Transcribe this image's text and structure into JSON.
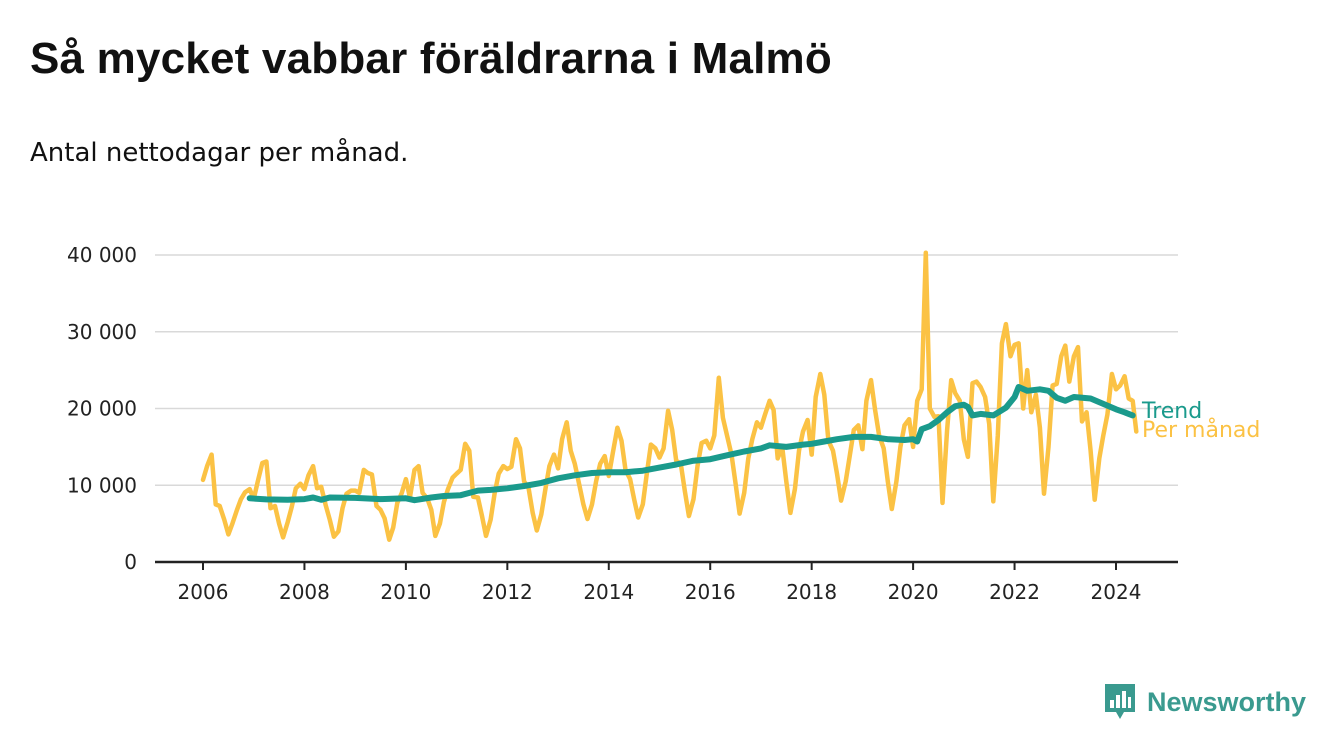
{
  "header": {
    "title": "Så mycket vabbar föräldrarna i Malmö",
    "subtitle": "Antal nettodagar per månad."
  },
  "brand": {
    "name": "Newsworthy",
    "icon": "newsworthy-logo-icon",
    "color": "#3a9a8f"
  },
  "chart_data": {
    "type": "line",
    "title": "Så mycket vabbar föräldrarna i Malmö",
    "subtitle": "Antal nettodagar per månad.",
    "xlabel": "",
    "ylabel": "",
    "xlim": [
      2006,
      2024.4
    ],
    "ylim": [
      0,
      40000
    ],
    "x_ticks": [
      2006,
      2008,
      2010,
      2012,
      2014,
      2016,
      2018,
      2020,
      2022,
      2024
    ],
    "x_tick_labels": [
      "2006",
      "2008",
      "2010",
      "2012",
      "2014",
      "2016",
      "2018",
      "2020",
      "2022",
      "2024"
    ],
    "y_ticks": [
      0,
      10000,
      20000,
      30000,
      40000
    ],
    "y_tick_labels": [
      "0",
      "10 000",
      "20 000",
      "30 000",
      "40 000"
    ],
    "grid": "horizontal",
    "legend": "inline-right",
    "series": [
      {
        "name": "Per månad",
        "color": "#fbc244",
        "points": [
          [
            2006.0,
            10700
          ],
          [
            2006.08,
            12500
          ],
          [
            2006.17,
            14000
          ],
          [
            2006.25,
            7500
          ],
          [
            2006.33,
            7300
          ],
          [
            2006.42,
            5500
          ],
          [
            2006.5,
            3600
          ],
          [
            2006.58,
            5000
          ],
          [
            2006.67,
            6800
          ],
          [
            2006.75,
            8200
          ],
          [
            2006.83,
            9100
          ],
          [
            2006.92,
            9500
          ],
          [
            2007.0,
            8200
          ],
          [
            2007.08,
            10500
          ],
          [
            2007.17,
            12900
          ],
          [
            2007.25,
            13100
          ],
          [
            2007.33,
            7000
          ],
          [
            2007.42,
            7300
          ],
          [
            2007.5,
            5000
          ],
          [
            2007.58,
            3200
          ],
          [
            2007.67,
            5200
          ],
          [
            2007.75,
            7200
          ],
          [
            2007.83,
            9600
          ],
          [
            2007.92,
            10200
          ],
          [
            2008.0,
            9500
          ],
          [
            2008.08,
            11300
          ],
          [
            2008.17,
            12500
          ],
          [
            2008.25,
            9600
          ],
          [
            2008.33,
            9800
          ],
          [
            2008.42,
            7400
          ],
          [
            2008.5,
            5500
          ],
          [
            2008.58,
            3300
          ],
          [
            2008.67,
            4000
          ],
          [
            2008.75,
            7000
          ],
          [
            2008.83,
            8900
          ],
          [
            2008.92,
            9300
          ],
          [
            2009.0,
            9300
          ],
          [
            2009.08,
            9000
          ],
          [
            2009.17,
            12000
          ],
          [
            2009.25,
            11600
          ],
          [
            2009.33,
            11400
          ],
          [
            2009.42,
            7300
          ],
          [
            2009.5,
            6800
          ],
          [
            2009.58,
            5700
          ],
          [
            2009.67,
            2900
          ],
          [
            2009.75,
            4500
          ],
          [
            2009.83,
            7700
          ],
          [
            2009.92,
            9000
          ],
          [
            2010.0,
            10800
          ],
          [
            2010.08,
            8400
          ],
          [
            2010.17,
            12000
          ],
          [
            2010.25,
            12500
          ],
          [
            2010.33,
            9000
          ],
          [
            2010.42,
            8300
          ],
          [
            2010.5,
            6800
          ],
          [
            2010.58,
            3400
          ],
          [
            2010.67,
            5000
          ],
          [
            2010.75,
            7800
          ],
          [
            2010.83,
            9500
          ],
          [
            2010.92,
            11000
          ],
          [
            2011.0,
            11500
          ],
          [
            2011.08,
            12000
          ],
          [
            2011.17,
            15400
          ],
          [
            2011.25,
            14500
          ],
          [
            2011.33,
            8500
          ],
          [
            2011.42,
            8400
          ],
          [
            2011.5,
            6000
          ],
          [
            2011.58,
            3400
          ],
          [
            2011.67,
            5500
          ],
          [
            2011.75,
            9000
          ],
          [
            2011.83,
            11500
          ],
          [
            2011.92,
            12500
          ],
          [
            2012.0,
            12100
          ],
          [
            2012.08,
            12400
          ],
          [
            2012.17,
            16000
          ],
          [
            2012.25,
            14800
          ],
          [
            2012.33,
            10500
          ],
          [
            2012.42,
            9600
          ],
          [
            2012.5,
            6400
          ],
          [
            2012.58,
            4100
          ],
          [
            2012.67,
            6200
          ],
          [
            2012.75,
            9500
          ],
          [
            2012.83,
            12500
          ],
          [
            2012.92,
            14000
          ],
          [
            2013.0,
            12200
          ],
          [
            2013.08,
            16000
          ],
          [
            2013.17,
            18200
          ],
          [
            2013.25,
            14500
          ],
          [
            2013.33,
            12800
          ],
          [
            2013.42,
            10000
          ],
          [
            2013.5,
            7500
          ],
          [
            2013.58,
            5600
          ],
          [
            2013.67,
            7500
          ],
          [
            2013.75,
            10500
          ],
          [
            2013.83,
            12800
          ],
          [
            2013.92,
            13800
          ],
          [
            2014.0,
            11200
          ],
          [
            2014.08,
            14200
          ],
          [
            2014.17,
            17500
          ],
          [
            2014.25,
            15800
          ],
          [
            2014.33,
            12000
          ],
          [
            2014.42,
            10800
          ],
          [
            2014.5,
            8200
          ],
          [
            2014.58,
            5800
          ],
          [
            2014.67,
            7500
          ],
          [
            2014.75,
            11500
          ],
          [
            2014.83,
            15300
          ],
          [
            2014.92,
            14800
          ],
          [
            2015.0,
            13600
          ],
          [
            2015.08,
            14800
          ],
          [
            2015.17,
            19700
          ],
          [
            2015.25,
            17200
          ],
          [
            2015.33,
            13200
          ],
          [
            2015.42,
            12800
          ],
          [
            2015.5,
            9200
          ],
          [
            2015.58,
            6000
          ],
          [
            2015.67,
            8200
          ],
          [
            2015.75,
            12500
          ],
          [
            2015.83,
            15500
          ],
          [
            2015.92,
            15800
          ],
          [
            2016.0,
            14800
          ],
          [
            2016.08,
            16500
          ],
          [
            2016.17,
            24000
          ],
          [
            2016.25,
            18800
          ],
          [
            2016.33,
            16500
          ],
          [
            2016.42,
            14000
          ],
          [
            2016.5,
            10200
          ],
          [
            2016.58,
            6300
          ],
          [
            2016.67,
            9000
          ],
          [
            2016.75,
            13500
          ],
          [
            2016.83,
            16000
          ],
          [
            2016.92,
            18200
          ],
          [
            2017.0,
            17500
          ],
          [
            2017.08,
            19200
          ],
          [
            2017.17,
            21000
          ],
          [
            2017.25,
            19800
          ],
          [
            2017.33,
            13500
          ],
          [
            2017.42,
            15000
          ],
          [
            2017.5,
            10500
          ],
          [
            2017.58,
            6400
          ],
          [
            2017.67,
            9500
          ],
          [
            2017.75,
            14500
          ],
          [
            2017.83,
            17000
          ],
          [
            2017.92,
            18500
          ],
          [
            2018.0,
            14000
          ],
          [
            2018.08,
            21500
          ],
          [
            2018.17,
            24500
          ],
          [
            2018.25,
            21800
          ],
          [
            2018.33,
            15800
          ],
          [
            2018.42,
            14500
          ],
          [
            2018.5,
            11500
          ],
          [
            2018.58,
            8000
          ],
          [
            2018.67,
            10500
          ],
          [
            2018.75,
            13800
          ],
          [
            2018.83,
            17200
          ],
          [
            2018.92,
            17800
          ],
          [
            2019.0,
            14700
          ],
          [
            2019.08,
            21000
          ],
          [
            2019.17,
            23700
          ],
          [
            2019.25,
            19800
          ],
          [
            2019.33,
            16500
          ],
          [
            2019.42,
            14800
          ],
          [
            2019.5,
            10500
          ],
          [
            2019.58,
            6900
          ],
          [
            2019.67,
            10500
          ],
          [
            2019.75,
            15000
          ],
          [
            2019.83,
            17800
          ],
          [
            2019.92,
            18600
          ],
          [
            2020.0,
            15000
          ],
          [
            2020.08,
            21000
          ],
          [
            2020.17,
            22500
          ],
          [
            2020.25,
            40300
          ],
          [
            2020.33,
            20000
          ],
          [
            2020.42,
            18900
          ],
          [
            2020.5,
            19000
          ],
          [
            2020.58,
            7700
          ],
          [
            2020.67,
            17200
          ],
          [
            2020.75,
            23700
          ],
          [
            2020.83,
            22000
          ],
          [
            2020.92,
            21000
          ],
          [
            2021.0,
            16000
          ],
          [
            2021.08,
            13700
          ],
          [
            2021.17,
            23300
          ],
          [
            2021.25,
            23500
          ],
          [
            2021.33,
            22800
          ],
          [
            2021.42,
            21500
          ],
          [
            2021.5,
            18000
          ],
          [
            2021.58,
            7900
          ],
          [
            2021.67,
            16500
          ],
          [
            2021.75,
            28500
          ],
          [
            2021.83,
            31000
          ],
          [
            2021.92,
            26800
          ],
          [
            2022.0,
            28300
          ],
          [
            2022.08,
            28500
          ],
          [
            2022.17,
            20000
          ],
          [
            2022.25,
            25000
          ],
          [
            2022.33,
            19500
          ],
          [
            2022.42,
            21800
          ],
          [
            2022.5,
            17500
          ],
          [
            2022.58,
            8900
          ],
          [
            2022.67,
            15000
          ],
          [
            2022.75,
            23000
          ],
          [
            2022.83,
            23200
          ],
          [
            2022.92,
            26800
          ],
          [
            2023.0,
            28200
          ],
          [
            2023.08,
            23500
          ],
          [
            2023.17,
            26800
          ],
          [
            2023.25,
            28000
          ],
          [
            2023.33,
            18300
          ],
          [
            2023.42,
            19500
          ],
          [
            2023.5,
            14500
          ],
          [
            2023.58,
            8100
          ],
          [
            2023.67,
            13500
          ],
          [
            2023.75,
            16500
          ],
          [
            2023.83,
            19200
          ],
          [
            2023.92,
            24500
          ],
          [
            2024.0,
            22500
          ],
          [
            2024.08,
            23000
          ],
          [
            2024.17,
            24200
          ],
          [
            2024.25,
            21300
          ],
          [
            2024.33,
            21000
          ],
          [
            2024.4,
            17000
          ]
        ]
      },
      {
        "name": "Trend",
        "color": "#1a9a8c",
        "points": [
          [
            2006.92,
            8300
          ],
          [
            2007.25,
            8150
          ],
          [
            2007.67,
            8100
          ],
          [
            2008.0,
            8200
          ],
          [
            2008.17,
            8400
          ],
          [
            2008.33,
            8100
          ],
          [
            2008.5,
            8400
          ],
          [
            2009.0,
            8350
          ],
          [
            2009.5,
            8200
          ],
          [
            2010.0,
            8300
          ],
          [
            2010.17,
            8050
          ],
          [
            2010.5,
            8400
          ],
          [
            2010.75,
            8600
          ],
          [
            2011.08,
            8700
          ],
          [
            2011.42,
            9300
          ],
          [
            2011.67,
            9400
          ],
          [
            2012.0,
            9600
          ],
          [
            2012.33,
            9900
          ],
          [
            2012.67,
            10300
          ],
          [
            2013.0,
            10900
          ],
          [
            2013.33,
            11300
          ],
          [
            2013.67,
            11600
          ],
          [
            2014.0,
            11700
          ],
          [
            2014.33,
            11700
          ],
          [
            2014.67,
            11900
          ],
          [
            2015.0,
            12300
          ],
          [
            2015.33,
            12700
          ],
          [
            2015.67,
            13200
          ],
          [
            2016.0,
            13400
          ],
          [
            2016.33,
            13900
          ],
          [
            2016.67,
            14400
          ],
          [
            2017.0,
            14800
          ],
          [
            2017.17,
            15200
          ],
          [
            2017.5,
            15000
          ],
          [
            2017.83,
            15300
          ],
          [
            2018.0,
            15400
          ],
          [
            2018.25,
            15700
          ],
          [
            2018.5,
            16000
          ],
          [
            2018.83,
            16300
          ],
          [
            2019.17,
            16300
          ],
          [
            2019.5,
            16000
          ],
          [
            2019.83,
            15900
          ],
          [
            2020.0,
            16000
          ],
          [
            2020.08,
            15700
          ],
          [
            2020.17,
            17300
          ],
          [
            2020.33,
            17700
          ],
          [
            2020.5,
            18500
          ],
          [
            2020.67,
            19500
          ],
          [
            2020.83,
            20300
          ],
          [
            2021.0,
            20500
          ],
          [
            2021.08,
            20200
          ],
          [
            2021.17,
            19100
          ],
          [
            2021.33,
            19300
          ],
          [
            2021.58,
            19100
          ],
          [
            2021.83,
            20100
          ],
          [
            2022.0,
            21500
          ],
          [
            2022.08,
            22800
          ],
          [
            2022.25,
            22300
          ],
          [
            2022.5,
            22500
          ],
          [
            2022.67,
            22300
          ],
          [
            2022.83,
            21400
          ],
          [
            2023.0,
            21000
          ],
          [
            2023.17,
            21500
          ],
          [
            2023.5,
            21300
          ],
          [
            2023.75,
            20600
          ],
          [
            2024.0,
            19900
          ],
          [
            2024.17,
            19500
          ],
          [
            2024.25,
            19300
          ],
          [
            2024.33,
            19100
          ]
        ]
      }
    ]
  }
}
